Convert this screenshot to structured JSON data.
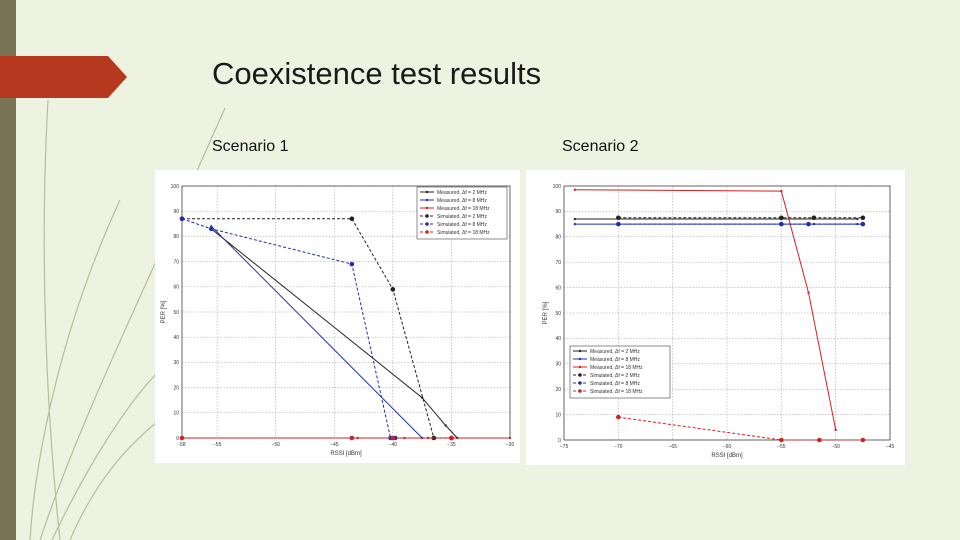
{
  "slide": {
    "title": "Coexistence test results",
    "left_label": "Scenario 1",
    "right_label": "Scenario 2",
    "accent_color": "#b5381f",
    "bar_color": "#7b7356"
  },
  "chart_data": [
    {
      "type": "line",
      "xlabel": "RSSI [dBm]",
      "ylabel": "PER [%]",
      "xlim": [
        -58,
        -30
      ],
      "ylim": [
        0,
        100
      ],
      "xticks": [
        -58,
        -55,
        -50,
        -45,
        -40,
        -35,
        -30
      ],
      "yticks": [
        0,
        10,
        20,
        30,
        40,
        50,
        60,
        70,
        80,
        90,
        100
      ],
      "xtick_labels": [
        "-58",
        "−55",
        "−50",
        "−45",
        "−40",
        "−35",
        "−30"
      ],
      "ytick_labels": [
        "0",
        "10",
        "20",
        "30",
        "40",
        "50",
        "60",
        "70",
        "80",
        "90",
        "100"
      ],
      "grid": true,
      "legend_position": "top-right",
      "series": [
        {
          "name": "Measured, Δf = 2 MHz",
          "color": "#222222",
          "style": "solid",
          "marker": "dot",
          "x": [
            -55.5,
            -37.5,
            -35.5,
            -34.5
          ],
          "y": [
            83,
            16,
            5,
            0
          ]
        },
        {
          "name": "Measured, Δf = 8 MHz",
          "color": "#1f2fae",
          "style": "solid",
          "marker": "dot",
          "x": [
            -55.5,
            -37.5
          ],
          "y": [
            84,
            0
          ]
        },
        {
          "name": "Measured, Δf = 18 MHz",
          "color": "#d42020",
          "style": "solid",
          "marker": "dot",
          "x": [
            -58,
            -43,
            -39,
            -37,
            -35,
            -30
          ],
          "y": [
            0,
            0,
            0,
            0,
            0,
            0
          ]
        },
        {
          "name": "Simulated, Δf = 2 MHz",
          "color": "#222222",
          "style": "dashed",
          "marker": "circle",
          "x": [
            -58,
            -43.5,
            -40,
            -36.5,
            -35
          ],
          "y": [
            87,
            87,
            59,
            0,
            0
          ]
        },
        {
          "name": "Simulated, Δf = 8 MHz",
          "color": "#1f2fae",
          "style": "dashed",
          "marker": "circle",
          "x": [
            -58,
            -55.5,
            -43.5,
            -40.2,
            -39.8
          ],
          "y": [
            87,
            83,
            69,
            0,
            0
          ]
        },
        {
          "name": "Simulated, Δf = 18 MHz",
          "color": "#d42020",
          "style": "dashed",
          "marker": "circle",
          "x": [
            -58,
            -43.5,
            -40,
            -35
          ],
          "y": [
            0,
            0,
            0,
            0
          ]
        }
      ]
    },
    {
      "type": "line",
      "xlabel": "RSSI [dBm]",
      "ylabel": "PER [%]",
      "xlim": [
        -75,
        -45
      ],
      "ylim": [
        0,
        100
      ],
      "xticks": [
        -75,
        -70,
        -65,
        -60,
        -55,
        -50,
        -45
      ],
      "yticks": [
        0,
        10,
        20,
        30,
        40,
        50,
        60,
        70,
        80,
        90,
        100
      ],
      "xtick_labels": [
        "−75",
        "−70",
        "−65",
        "−60",
        "−55",
        "−50",
        "−45"
      ],
      "ytick_labels": [
        "0",
        "10",
        "20",
        "30",
        "40",
        "50",
        "60",
        "70",
        "80",
        "90",
        "100"
      ],
      "grid": true,
      "legend_position": "lower-left",
      "series": [
        {
          "name": "Measured, Δf = 2 MHz",
          "color": "#222222",
          "style": "solid",
          "marker": "dot",
          "x": [
            -74,
            -55,
            -48
          ],
          "y": [
            87,
            87,
            87
          ]
        },
        {
          "name": "Measured, Δf = 8 MHz",
          "color": "#1f2fae",
          "style": "solid",
          "marker": "dot",
          "x": [
            -74,
            -55,
            -52,
            -48
          ],
          "y": [
            85,
            85,
            85,
            85
          ]
        },
        {
          "name": "Measured, Δf = 18 MHz",
          "color": "#d42020",
          "style": "solid",
          "marker": "dot",
          "x": [
            -74,
            -55,
            -52.5,
            -50
          ],
          "y": [
            98.5,
            98,
            58,
            4
          ]
        },
        {
          "name": "Simulated, Δf = 2 MHz",
          "color": "#222222",
          "style": "dashed",
          "marker": "circle",
          "x": [
            -70,
            -55,
            -52,
            -47.5
          ],
          "y": [
            87.5,
            87.5,
            87.5,
            87.5
          ]
        },
        {
          "name": "Simulated, Δf = 8 MHz",
          "color": "#1f2fae",
          "style": "dashed",
          "marker": "circle",
          "x": [
            -70,
            -55,
            -52.5,
            -47.5
          ],
          "y": [
            85,
            85,
            85,
            85
          ]
        },
        {
          "name": "Simulated, Δf = 18 MHz",
          "color": "#d42020",
          "style": "dashed",
          "marker": "circle",
          "x": [
            -70,
            -55,
            -51.5,
            -47.5
          ],
          "y": [
            9,
            0,
            0,
            0
          ]
        }
      ]
    }
  ]
}
